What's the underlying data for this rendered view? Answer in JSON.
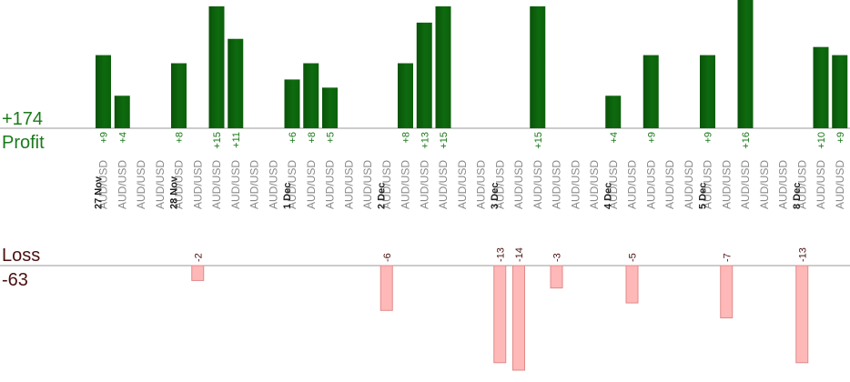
{
  "summary": {
    "profit_total": "+174",
    "profit_label": "Profit",
    "loss_label": "Loss",
    "loss_total": "-63"
  },
  "colors": {
    "profit_bar": "#0e6b0e",
    "profit_text": "#1a7a1a",
    "loss_bar": "#ffb8b8",
    "loss_bar_border": "#e08a8a",
    "loss_text": "#4a1010",
    "axis": "#999999"
  },
  "chart_data": {
    "type": "bar",
    "profit_scale_max": 15,
    "loss_scale_max": 14,
    "date_labels": [
      {
        "label": "27 Nov",
        "slot": -0.3
      },
      {
        "label": "28 Nov",
        "slot": 3.7
      },
      {
        "label": "1 Dec",
        "slot": 9.7
      },
      {
        "label": "2 Dec",
        "slot": 14.7
      },
      {
        "label": "3 Dec",
        "slot": 20.7
      },
      {
        "label": "4 Dec",
        "slot": 26.7
      },
      {
        "label": "5 Dec",
        "slot": 31.7
      },
      {
        "label": "8 Dec",
        "slot": 36.7
      }
    ],
    "trades": [
      {
        "pair": "AUD/USD",
        "profit": 9
      },
      {
        "pair": "AUD/USD",
        "profit": 4
      },
      {
        "pair": "AUD/USD"
      },
      {
        "pair": "AUD/USD"
      },
      {
        "pair": "AUD/USD",
        "profit": 8
      },
      {
        "pair": "AUD/USD",
        "loss": -2
      },
      {
        "pair": "AUD/USD",
        "profit": 15
      },
      {
        "pair": "AUD/USD",
        "profit": 11
      },
      {
        "pair": "AUD/USD"
      },
      {
        "pair": "AUD/USD"
      },
      {
        "pair": "AUD/USD",
        "profit": 6
      },
      {
        "pair": "AUD/USD",
        "profit": 8
      },
      {
        "pair": "AUD/USD",
        "profit": 5
      },
      {
        "pair": "AUD/USD"
      },
      {
        "pair": "AUD/USD"
      },
      {
        "pair": "AUD/USD",
        "loss": -6
      },
      {
        "pair": "AUD/USD",
        "profit": 8
      },
      {
        "pair": "AUD/USD",
        "profit": 13
      },
      {
        "pair": "AUD/USD",
        "profit": 15
      },
      {
        "pair": "AUD/USD"
      },
      {
        "pair": "AUD/USD"
      },
      {
        "pair": "AUD/USD",
        "loss": -13
      },
      {
        "pair": "AUD/USD",
        "loss": -14
      },
      {
        "pair": "AUD/USD",
        "profit": 15
      },
      {
        "pair": "AUD/USD",
        "loss": -3
      },
      {
        "pair": "AUD/USD"
      },
      {
        "pair": "AUD/USD"
      },
      {
        "pair": "AUD/USD",
        "profit": 4
      },
      {
        "pair": "AUD/USD",
        "loss": -5
      },
      {
        "pair": "AUD/USD",
        "profit": 9
      },
      {
        "pair": "AUD/USD"
      },
      {
        "pair": "AUD/USD"
      },
      {
        "pair": "AUD/USD",
        "profit": 9
      },
      {
        "pair": "AUD/USD",
        "loss": -7
      },
      {
        "pair": "AUD/USD",
        "profit": 16
      },
      {
        "pair": "AUD/USD"
      },
      {
        "pair": "AUD/USD"
      },
      {
        "pair": "AUD/USD",
        "loss": -13
      },
      {
        "pair": "AUD/USD",
        "profit": 10
      },
      {
        "pair": "AUD/USD",
        "profit": 9
      }
    ]
  }
}
